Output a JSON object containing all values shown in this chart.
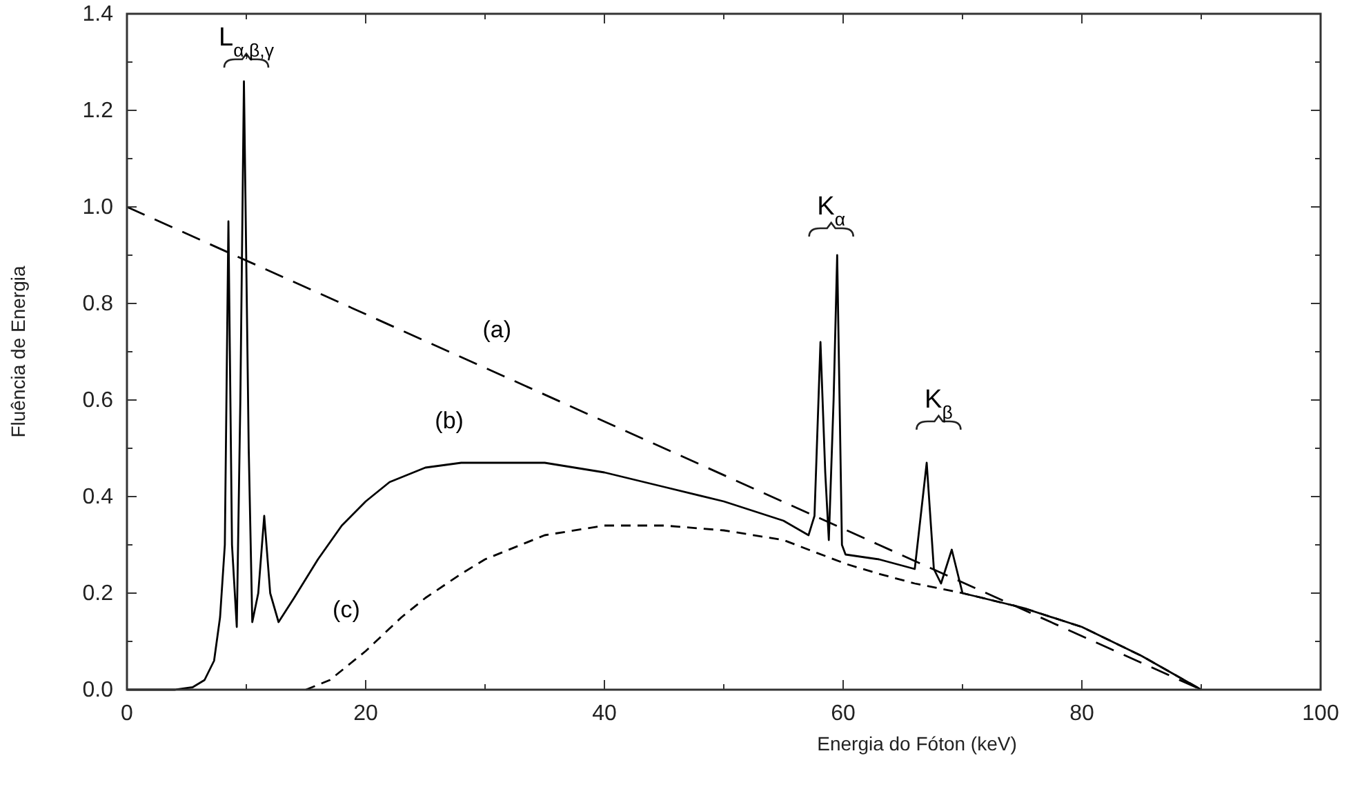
{
  "chart_data": {
    "type": "line",
    "xlabel": "Energia do Fóton (keV)",
    "ylabel": "Fluência de Energia",
    "xlim": [
      0,
      100
    ],
    "ylim": [
      0,
      1.4
    ],
    "xticks": [
      0,
      {
        "value": 10,
        "label": null
      },
      20,
      {
        "value": 30,
        "label": null
      },
      40,
      {
        "value": 50,
        "label": null
      },
      60,
      {
        "value": 70,
        "label": null
      },
      80,
      {
        "value": 90,
        "label": null
      },
      100
    ],
    "yticks": [
      {
        "value": 0,
        "label": "0.0"
      },
      {
        "value": 0.1,
        "label": null
      },
      {
        "value": 0.2,
        "label": "0.2"
      },
      {
        "value": 0.3,
        "label": null
      },
      {
        "value": 0.4,
        "label": "0.4"
      },
      {
        "value": 0.5,
        "label": null
      },
      {
        "value": 0.6,
        "label": "0.6"
      },
      {
        "value": 0.7,
        "label": null
      },
      {
        "value": 0.8,
        "label": "0.8"
      },
      {
        "value": 0.9,
        "label": null
      },
      {
        "value": 1,
        "label": "1.0"
      },
      {
        "value": 1.1,
        "label": null
      },
      {
        "value": 1.2,
        "label": "1.2"
      },
      {
        "value": 1.3,
        "label": null
      },
      {
        "value": 1.4,
        "label": "1.4"
      }
    ],
    "grid": false,
    "marker": "none",
    "series": [
      {
        "name": "(a)",
        "color": "#000000",
        "line_style": "dashed",
        "x": [
          0,
          90
        ],
        "values": [
          1.0,
          0
        ]
      },
      {
        "name": "(b)",
        "color": "#000000",
        "line_style": "solid",
        "x": [
          0,
          4,
          5.5,
          6.5,
          7.3,
          7.8,
          8.2,
          8.5,
          8.8,
          9.2,
          9.5,
          9.8,
          10.2,
          10.5,
          11,
          11.5,
          12,
          12.7,
          14,
          16,
          18,
          20,
          22,
          25,
          28,
          30,
          35,
          40,
          45,
          50,
          55,
          57.1,
          57.6,
          58.1,
          58.5,
          58.8,
          59.2,
          59.5,
          59.9,
          60.2,
          63,
          66,
          67,
          67.6,
          68.2,
          69.1,
          70,
          75,
          80,
          85,
          90
        ],
        "values": [
          0,
          0,
          0.005,
          0.02,
          0.06,
          0.15,
          0.3,
          0.97,
          0.3,
          0.13,
          0.6,
          1.26,
          0.5,
          0.14,
          0.2,
          0.36,
          0.2,
          0.14,
          0.19,
          0.27,
          0.34,
          0.39,
          0.43,
          0.46,
          0.47,
          0.47,
          0.47,
          0.45,
          0.42,
          0.39,
          0.35,
          0.32,
          0.36,
          0.72,
          0.45,
          0.31,
          0.6,
          0.9,
          0.3,
          0.28,
          0.27,
          0.25,
          0.47,
          0.25,
          0.22,
          0.29,
          0.2,
          0.17,
          0.13,
          0.07,
          0
        ]
      },
      {
        "name": "(c)",
        "color": "#000000",
        "line_style": "dotted",
        "x": [
          15,
          17,
          20,
          23,
          25,
          28,
          30,
          33,
          35,
          40,
          45,
          50,
          55,
          57.1,
          60.3,
          63,
          66,
          70,
          75,
          80,
          85,
          90
        ],
        "values": [
          0,
          0.02,
          0.08,
          0.15,
          0.19,
          0.24,
          0.27,
          0.3,
          0.32,
          0.34,
          0.34,
          0.33,
          0.31,
          0.29,
          0.26,
          0.24,
          0.22,
          0.2,
          0.17,
          0.13,
          0.07,
          0
        ]
      }
    ],
    "annotations": [
      {
        "text": "L$_{α,β,γ}$",
        "x": 10,
        "y": 1.3
      },
      {
        "text": "K$_{α}$",
        "x": 59,
        "y": 0.95
      },
      {
        "text": "K$_{β}$",
        "x": 68,
        "y": 0.55
      }
    ]
  }
}
